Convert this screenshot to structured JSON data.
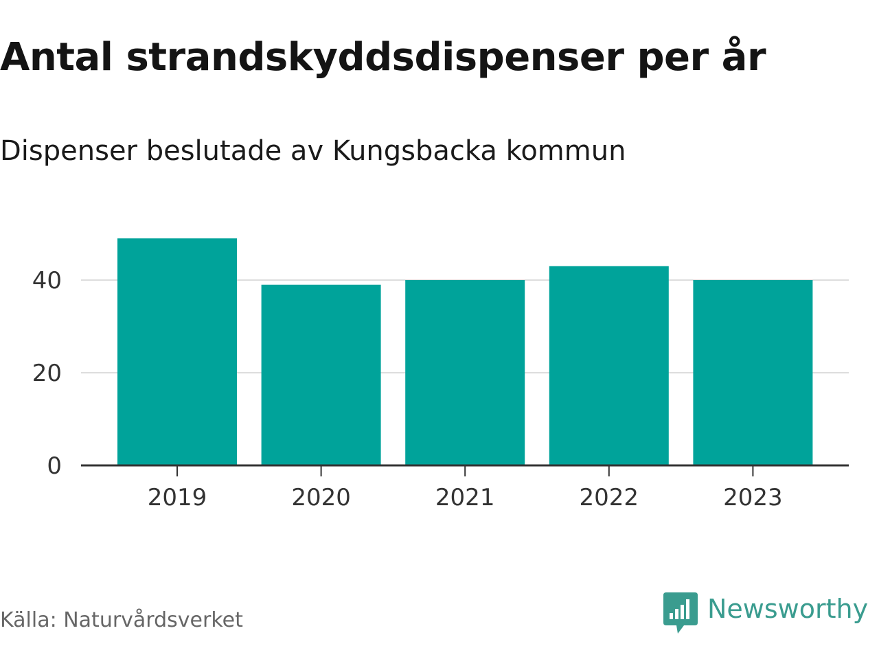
{
  "colors": {
    "bar": "#00a39a",
    "grid": "#dddddd",
    "axis": "#333333",
    "brand": "#3a9c8f"
  },
  "chart_data": {
    "type": "bar",
    "title": "Antal strandskyddsdispenser per år",
    "subtitle": "Dispenser beslutade av Kungsbacka kommun",
    "categories": [
      "2019",
      "2020",
      "2021",
      "2022",
      "2023"
    ],
    "values": [
      49,
      39,
      40,
      43,
      40
    ],
    "ylim": [
      0,
      50
    ],
    "yticks": [
      0,
      20,
      40
    ],
    "xlabel": "",
    "ylabel": "",
    "grid": true
  },
  "footer": {
    "source": "Källa: Naturvårdsverket",
    "brand_name": "Newsworthy",
    "brand_icon": "newsworthy-chart-icon"
  }
}
